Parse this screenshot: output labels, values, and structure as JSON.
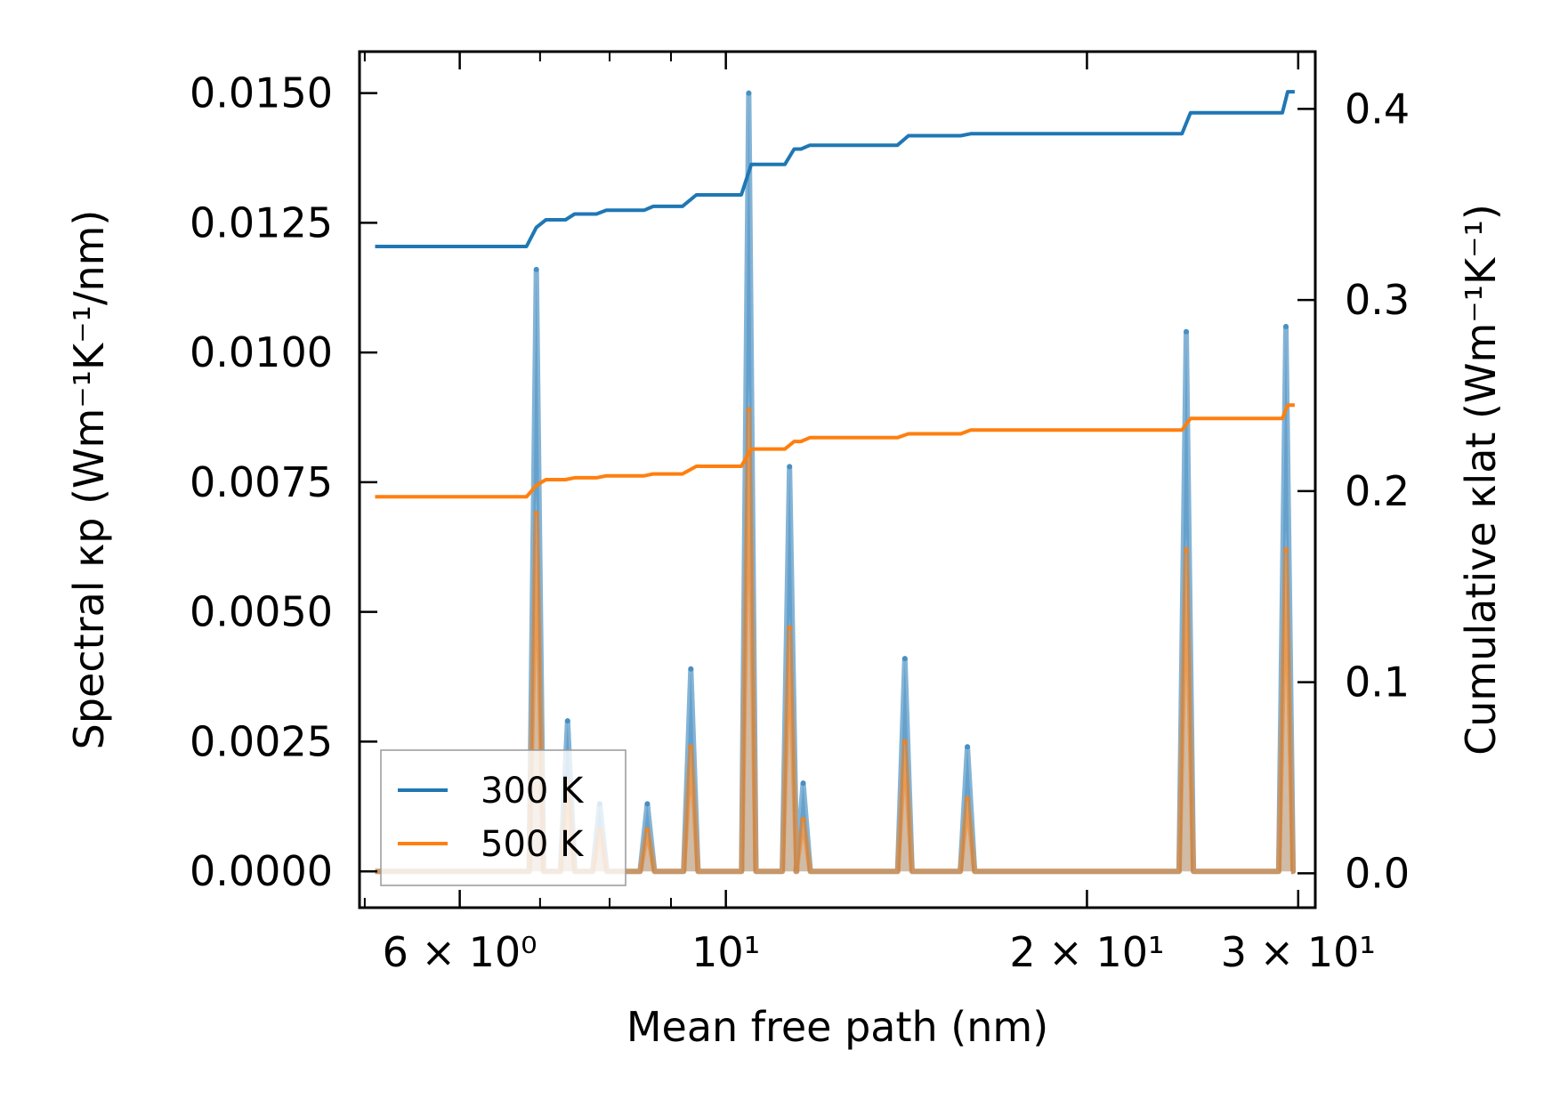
{
  "chart_data": {
    "type": "line",
    "title": "",
    "xlabel": "Mean free path (nm)",
    "xscale": "log",
    "xlim": [
      4.95,
      31.0
    ],
    "ylabel_left": "Spectral κp (Wm⁻¹K⁻¹/nm)",
    "ylabel_right": "Cumulative κlat (Wm⁻¹K⁻¹)",
    "ylim_left": [
      -0.0007,
      0.0158
    ],
    "ylim_right": [
      -0.018,
      0.43
    ],
    "x_ticks": [
      {
        "value": 6,
        "label": "6 × 10⁰"
      },
      {
        "value": 10,
        "label": "10¹"
      },
      {
        "value": 20,
        "label": "2 × 10¹"
      },
      {
        "value": 30,
        "label": "3 × 10¹"
      }
    ],
    "y_ticks_left": [
      {
        "value": 0.0,
        "label": "0.0000"
      },
      {
        "value": 0.0025,
        "label": "0.0025"
      },
      {
        "value": 0.005,
        "label": "0.0050"
      },
      {
        "value": 0.0075,
        "label": "0.0075"
      },
      {
        "value": 0.01,
        "label": "0.0100"
      },
      {
        "value": 0.0125,
        "label": "0.0125"
      },
      {
        "value": 0.015,
        "label": "0.0150"
      }
    ],
    "y_ticks_right": [
      {
        "value": 0.0,
        "label": "0.0"
      },
      {
        "value": 0.1,
        "label": "0.1"
      },
      {
        "value": 0.2,
        "label": "0.2"
      },
      {
        "value": 0.3,
        "label": "0.3"
      },
      {
        "value": 0.4,
        "label": "0.4"
      }
    ],
    "legend": {
      "position": "lower-left",
      "entries": [
        {
          "label": "300 K",
          "color": "#1f77b4"
        },
        {
          "label": "500 K",
          "color": "#ff7f0e"
        }
      ]
    },
    "spectral_series": [
      {
        "name": "300 K",
        "color": "#1f77b4",
        "x_start": 5.1,
        "x_end": 29.6,
        "peaks": [
          {
            "x": 6.95,
            "y": 0.0116
          },
          {
            "x": 7.38,
            "y": 0.0029
          },
          {
            "x": 7.85,
            "y": 0.0013
          },
          {
            "x": 8.6,
            "y": 0.0013
          },
          {
            "x": 9.35,
            "y": 0.0039
          },
          {
            "x": 10.45,
            "y": 0.015
          },
          {
            "x": 11.3,
            "y": 0.0078
          },
          {
            "x": 11.6,
            "y": 0.0017
          },
          {
            "x": 14.1,
            "y": 0.0041
          },
          {
            "x": 15.9,
            "y": 0.0024
          },
          {
            "x": 24.2,
            "y": 0.0104
          },
          {
            "x": 29.3,
            "y": 0.0105
          }
        ]
      },
      {
        "name": "500 K",
        "color": "#ff7f0e",
        "x_start": 5.1,
        "x_end": 29.6,
        "peaks": [
          {
            "x": 6.95,
            "y": 0.0069
          },
          {
            "x": 7.38,
            "y": 0.0017
          },
          {
            "x": 7.85,
            "y": 0.0008
          },
          {
            "x": 8.6,
            "y": 0.0008
          },
          {
            "x": 9.35,
            "y": 0.0024
          },
          {
            "x": 10.45,
            "y": 0.0089
          },
          {
            "x": 11.3,
            "y": 0.0047
          },
          {
            "x": 11.6,
            "y": 0.001
          },
          {
            "x": 14.1,
            "y": 0.0025
          },
          {
            "x": 15.9,
            "y": 0.0014
          },
          {
            "x": 24.2,
            "y": 0.0062
          },
          {
            "x": 29.3,
            "y": 0.0062
          }
        ]
      }
    ],
    "cumulative_series": [
      {
        "name": "300 K",
        "color": "#1f77b4",
        "x": [
          5.1,
          6.82,
          6.95,
          7.08,
          7.35,
          7.48,
          7.8,
          7.95,
          8.55,
          8.7,
          9.2,
          9.45,
          10.3,
          10.5,
          11.2,
          11.4,
          11.55,
          11.75,
          13.9,
          14.2,
          15.7,
          16.0,
          24.0,
          24.4,
          29.1,
          29.4,
          29.8
        ],
        "y": [
          0.328,
          0.328,
          0.338,
          0.342,
          0.342,
          0.345,
          0.345,
          0.347,
          0.347,
          0.349,
          0.349,
          0.355,
          0.355,
          0.371,
          0.371,
          0.379,
          0.379,
          0.381,
          0.381,
          0.386,
          0.386,
          0.387,
          0.387,
          0.398,
          0.398,
          0.409,
          0.409
        ]
      },
      {
        "name": "500 K",
        "color": "#ff7f0e",
        "x": [
          5.1,
          6.82,
          6.95,
          7.08,
          7.35,
          7.48,
          7.8,
          7.95,
          8.55,
          8.7,
          9.2,
          9.45,
          10.3,
          10.5,
          11.2,
          11.4,
          11.55,
          11.75,
          13.9,
          14.2,
          15.7,
          16.0,
          24.0,
          24.4,
          29.1,
          29.4,
          29.8
        ],
        "y": [
          0.197,
          0.197,
          0.203,
          0.206,
          0.206,
          0.207,
          0.207,
          0.208,
          0.208,
          0.209,
          0.209,
          0.213,
          0.213,
          0.222,
          0.222,
          0.226,
          0.226,
          0.228,
          0.228,
          0.23,
          0.23,
          0.232,
          0.232,
          0.238,
          0.238,
          0.245,
          0.245
        ]
      }
    ]
  }
}
